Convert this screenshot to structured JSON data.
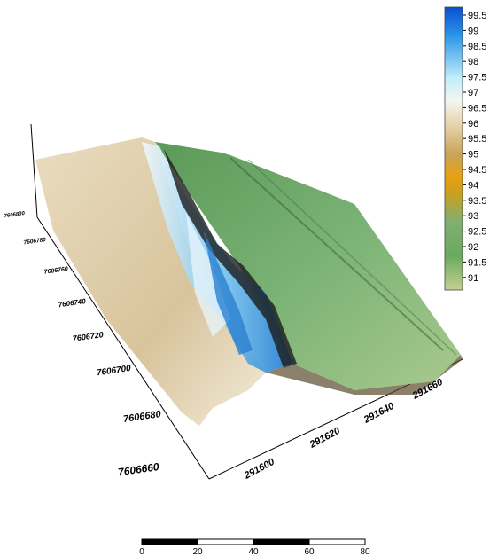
{
  "colorbar": {
    "ticks": [
      99.5,
      99,
      98.5,
      98,
      97.5,
      97,
      96.5,
      96,
      95.5,
      95,
      94.5,
      94,
      93.5,
      93,
      92.5,
      92,
      91.5,
      91
    ]
  },
  "y_axis": {
    "ticks": [
      7606660,
      7606680,
      7606700,
      7606720,
      7606740,
      7606760,
      7606780,
      7606800
    ]
  },
  "x_axis": {
    "ticks": [
      291600,
      291620,
      291640,
      291660
    ]
  },
  "scale_bar": {
    "ticks": [
      0,
      20,
      40,
      60,
      80
    ]
  }
}
